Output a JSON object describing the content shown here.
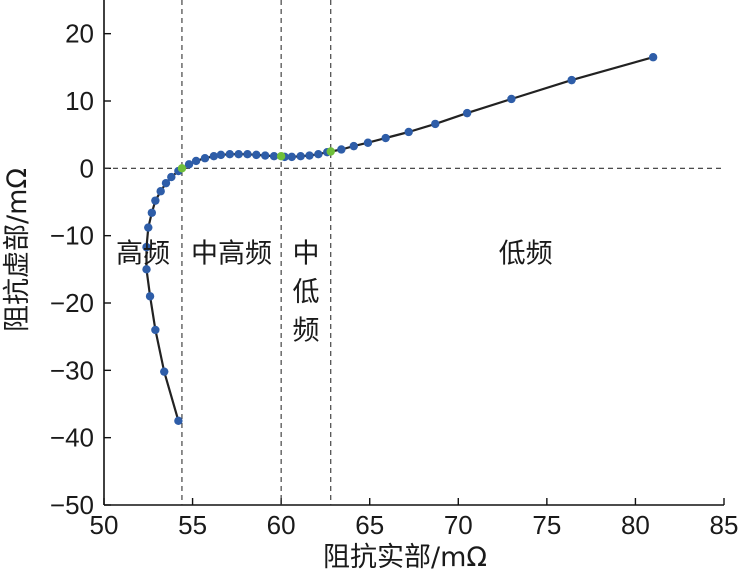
{
  "chart_data": {
    "type": "scatter",
    "xlabel": "阻抗实部/mΩ",
    "ylabel": "阻抗虚部/mΩ",
    "xlim": [
      50,
      85
    ],
    "ylim": [
      -50,
      25
    ],
    "xticks": [
      "50",
      "55",
      "60",
      "65",
      "70",
      "75",
      "80",
      "85"
    ],
    "yticks": [
      "20",
      "10",
      "0",
      "−10",
      "−20",
      "−30",
      "−40",
      "−50"
    ],
    "xtick_values": [
      50,
      55,
      60,
      65,
      70,
      75,
      80,
      85
    ],
    "ytick_values": [
      20,
      10,
      0,
      -10,
      -20,
      -30,
      -40,
      -50
    ],
    "grid": false,
    "reference_lines": {
      "horizontal_y": 0,
      "vertical_x": [
        54.4,
        60.0,
        62.8
      ]
    },
    "region_labels": [
      {
        "text": "高频",
        "x": 52.2,
        "y": -14
      },
      {
        "text": "中高频",
        "x": 57.2,
        "y": -14
      },
      {
        "text": "中",
        "x": 61.4,
        "y": -14
      },
      {
        "text": "低",
        "x": 61.4,
        "y": -19.7
      },
      {
        "text": "频",
        "x": 61.4,
        "y": -25.4
      },
      {
        "text": "低频",
        "x": 73.8,
        "y": -14
      }
    ],
    "series": [
      {
        "color": "#2e5da8",
        "line_color": "#222222",
        "points": [
          {
            "x": 54.2,
            "y": -37.5
          },
          {
            "x": 53.4,
            "y": -30.2
          },
          {
            "x": 52.9,
            "y": -24.0
          },
          {
            "x": 52.6,
            "y": -19.0
          },
          {
            "x": 52.4,
            "y": -15.0
          },
          {
            "x": 52.4,
            "y": -11.7
          },
          {
            "x": 52.5,
            "y": -8.8
          },
          {
            "x": 52.7,
            "y": -6.6
          },
          {
            "x": 52.9,
            "y": -4.8
          },
          {
            "x": 53.2,
            "y": -3.4
          },
          {
            "x": 53.5,
            "y": -2.2
          },
          {
            "x": 53.8,
            "y": -1.3
          },
          {
            "x": 54.2,
            "y": -0.4
          },
          {
            "x": 54.8,
            "y": 0.6
          },
          {
            "x": 55.2,
            "y": 1.1
          },
          {
            "x": 55.7,
            "y": 1.5
          },
          {
            "x": 56.2,
            "y": 1.8
          },
          {
            "x": 56.6,
            "y": 2.0
          },
          {
            "x": 57.1,
            "y": 2.1
          },
          {
            "x": 57.6,
            "y": 2.1
          },
          {
            "x": 58.1,
            "y": 2.1
          },
          {
            "x": 58.6,
            "y": 2.0
          },
          {
            "x": 59.1,
            "y": 1.9
          },
          {
            "x": 59.6,
            "y": 1.8
          },
          {
            "x": 60.2,
            "y": 1.7
          },
          {
            "x": 60.6,
            "y": 1.7
          },
          {
            "x": 61.1,
            "y": 1.8
          },
          {
            "x": 61.6,
            "y": 1.9
          },
          {
            "x": 62.1,
            "y": 2.1
          },
          {
            "x": 62.6,
            "y": 2.4
          },
          {
            "x": 63.4,
            "y": 2.8
          },
          {
            "x": 64.1,
            "y": 3.3
          },
          {
            "x": 64.9,
            "y": 3.8
          },
          {
            "x": 65.9,
            "y": 4.5
          },
          {
            "x": 67.2,
            "y": 5.4
          },
          {
            "x": 68.7,
            "y": 6.6
          },
          {
            "x": 70.5,
            "y": 8.2
          },
          {
            "x": 73.0,
            "y": 10.3
          },
          {
            "x": 76.4,
            "y": 13.1
          },
          {
            "x": 81.0,
            "y": 16.5
          }
        ]
      },
      {
        "color": "#6fbf3a",
        "points": [
          {
            "x": 54.4,
            "y": 0.0
          },
          {
            "x": 60.0,
            "y": 1.8
          },
          {
            "x": 62.8,
            "y": 2.5
          }
        ]
      }
    ]
  }
}
